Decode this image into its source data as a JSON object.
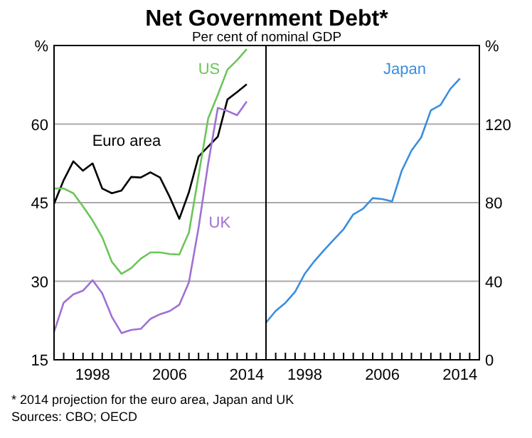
{
  "chart_data": [
    {
      "type": "line",
      "title": "Net Government Debt*",
      "subtitle": "Per cent of nominal GDP",
      "annotations": [
        "*   2014 projection for the euro area, Japan and UK",
        "Sources: CBO; OECD"
      ],
      "x": [
        1994,
        1995,
        1996,
        1997,
        1998,
        1999,
        2000,
        2001,
        2002,
        2003,
        2004,
        2005,
        2006,
        2007,
        2008,
        2009,
        2010,
        2011,
        2012,
        2013,
        2014
      ],
      "series": [
        {
          "name": "Euro area",
          "color": "#000000",
          "values": [
            44.8,
            49.3,
            52.9,
            51.1,
            52.5,
            47.7,
            46.8,
            47.3,
            49.9,
            49.8,
            50.8,
            49.8,
            46.1,
            41.9,
            47,
            53.8,
            55.7,
            57.6,
            64.7,
            66.1,
            67.6
          ]
        },
        {
          "name": "US",
          "color": "#6cc55a",
          "values": [
            47.7,
            47.7,
            46.8,
            44.3,
            41.6,
            38.4,
            33.7,
            31.4,
            32.5,
            34.3,
            35.5,
            35.5,
            35.2,
            35.1,
            39.3,
            50.2,
            61.1,
            65.6,
            70.4,
            72.2,
            74.3
          ]
        },
        {
          "name": "UK",
          "color": "#a070d4",
          "values": [
            20.3,
            25.9,
            27.5,
            28.2,
            30.2,
            27.7,
            23.2,
            20.1,
            20.7,
            20.9,
            22.8,
            23.7,
            24.3,
            25.5,
            29.8,
            40.2,
            52.5,
            63.1,
            62.5,
            61.7,
            64.3
          ]
        }
      ],
      "xlim": [
        1994,
        2016
      ],
      "xticks": [
        {
          "value": 1995,
          "label": null
        },
        {
          "value": 1996,
          "label": null
        },
        {
          "value": 1997,
          "label": null
        },
        {
          "value": 1998,
          "label": "1998"
        },
        {
          "value": 1999,
          "label": null
        },
        {
          "value": 2000,
          "label": null
        },
        {
          "value": 2001,
          "label": null
        },
        {
          "value": 2002,
          "label": null
        },
        {
          "value": 2003,
          "label": null
        },
        {
          "value": 2004,
          "label": null
        },
        {
          "value": 2005,
          "label": null
        },
        {
          "value": 2006,
          "label": "2006"
        },
        {
          "value": 2007,
          "label": null
        },
        {
          "value": 2008,
          "label": null
        },
        {
          "value": 2009,
          "label": null
        },
        {
          "value": 2010,
          "label": null
        },
        {
          "value": 2011,
          "label": null
        },
        {
          "value": 2012,
          "label": null
        },
        {
          "value": 2013,
          "label": null
        },
        {
          "value": 2014,
          "label": "2014"
        },
        {
          "value": 2015,
          "label": null
        }
      ],
      "ylim": [
        15,
        75
      ],
      "yticks": [
        15,
        30,
        45,
        60,
        {
          "value": 75,
          "label": "%"
        }
      ],
      "grid": "y"
    },
    {
      "type": "line",
      "x": [
        1994,
        1995,
        1996,
        1997,
        1998,
        1999,
        2000,
        2001,
        2002,
        2003,
        2004,
        2005,
        2006,
        2007,
        2008,
        2009,
        2010,
        2011,
        2012,
        2013,
        2014
      ],
      "series": [
        {
          "name": "Japan",
          "color": "#3a8ede",
          "values": [
            18.9,
            24.9,
            29,
            34.6,
            43.8,
            50.3,
            55.9,
            61.2,
            66.5,
            74,
            76.9,
            82.3,
            81.8,
            80.6,
            96.3,
            106.5,
            113.2,
            127,
            129.7,
            137.9,
            143.2
          ]
        }
      ],
      "xlim": [
        1994,
        2016
      ],
      "xticks": [
        {
          "value": 1995,
          "label": null
        },
        {
          "value": 1996,
          "label": null
        },
        {
          "value": 1997,
          "label": null
        },
        {
          "value": 1998,
          "label": "1998"
        },
        {
          "value": 1999,
          "label": null
        },
        {
          "value": 2000,
          "label": null
        },
        {
          "value": 2001,
          "label": null
        },
        {
          "value": 2002,
          "label": null
        },
        {
          "value": 2003,
          "label": null
        },
        {
          "value": 2004,
          "label": null
        },
        {
          "value": 2005,
          "label": null
        },
        {
          "value": 2006,
          "label": "2006"
        },
        {
          "value": 2007,
          "label": null
        },
        {
          "value": 2008,
          "label": null
        },
        {
          "value": 2009,
          "label": null
        },
        {
          "value": 2010,
          "label": null
        },
        {
          "value": 2011,
          "label": null
        },
        {
          "value": 2012,
          "label": null
        },
        {
          "value": 2013,
          "label": null
        },
        {
          "value": 2014,
          "label": "2014"
        },
        {
          "value": 2015,
          "label": null
        }
      ],
      "ylim": [
        0,
        160
      ],
      "yticks": [
        0,
        40,
        80,
        120,
        {
          "value": 160,
          "label": "%"
        }
      ],
      "grid": "y"
    }
  ]
}
